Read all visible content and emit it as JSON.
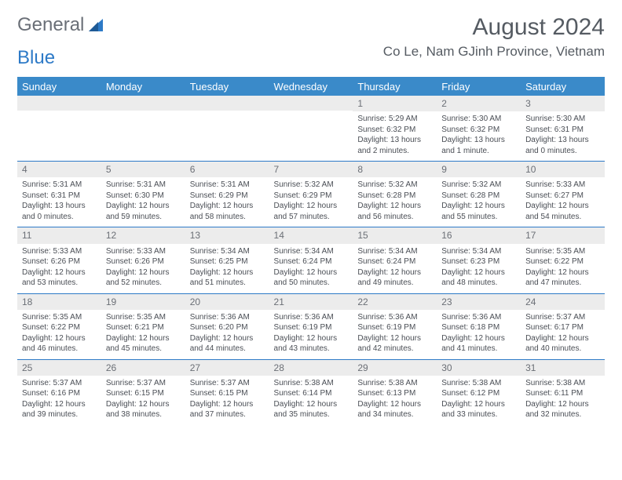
{
  "brand": {
    "part1": "General",
    "part2": "Blue"
  },
  "title": {
    "month": "August 2024",
    "location": "Co Le, Nam GJinh Province, Vietnam"
  },
  "colors": {
    "header_bg": "#3a8ac9",
    "header_text": "#ffffff",
    "row_divider": "#2d7ac7",
    "daynum_bg": "#ececec",
    "text": "#4a4e55",
    "brand_gray": "#6a6f77",
    "brand_blue": "#2d7ac7"
  },
  "dayHeaders": [
    "Sunday",
    "Monday",
    "Tuesday",
    "Wednesday",
    "Thursday",
    "Friday",
    "Saturday"
  ],
  "weeks": [
    [
      {
        "n": "",
        "sunrise": "",
        "sunset": "",
        "daylight": ""
      },
      {
        "n": "",
        "sunrise": "",
        "sunset": "",
        "daylight": ""
      },
      {
        "n": "",
        "sunrise": "",
        "sunset": "",
        "daylight": ""
      },
      {
        "n": "",
        "sunrise": "",
        "sunset": "",
        "daylight": ""
      },
      {
        "n": "1",
        "sunrise": "Sunrise: 5:29 AM",
        "sunset": "Sunset: 6:32 PM",
        "daylight": "Daylight: 13 hours and 2 minutes."
      },
      {
        "n": "2",
        "sunrise": "Sunrise: 5:30 AM",
        "sunset": "Sunset: 6:32 PM",
        "daylight": "Daylight: 13 hours and 1 minute."
      },
      {
        "n": "3",
        "sunrise": "Sunrise: 5:30 AM",
        "sunset": "Sunset: 6:31 PM",
        "daylight": "Daylight: 13 hours and 0 minutes."
      }
    ],
    [
      {
        "n": "4",
        "sunrise": "Sunrise: 5:31 AM",
        "sunset": "Sunset: 6:31 PM",
        "daylight": "Daylight: 13 hours and 0 minutes."
      },
      {
        "n": "5",
        "sunrise": "Sunrise: 5:31 AM",
        "sunset": "Sunset: 6:30 PM",
        "daylight": "Daylight: 12 hours and 59 minutes."
      },
      {
        "n": "6",
        "sunrise": "Sunrise: 5:31 AM",
        "sunset": "Sunset: 6:29 PM",
        "daylight": "Daylight: 12 hours and 58 minutes."
      },
      {
        "n": "7",
        "sunrise": "Sunrise: 5:32 AM",
        "sunset": "Sunset: 6:29 PM",
        "daylight": "Daylight: 12 hours and 57 minutes."
      },
      {
        "n": "8",
        "sunrise": "Sunrise: 5:32 AM",
        "sunset": "Sunset: 6:28 PM",
        "daylight": "Daylight: 12 hours and 56 minutes."
      },
      {
        "n": "9",
        "sunrise": "Sunrise: 5:32 AM",
        "sunset": "Sunset: 6:28 PM",
        "daylight": "Daylight: 12 hours and 55 minutes."
      },
      {
        "n": "10",
        "sunrise": "Sunrise: 5:33 AM",
        "sunset": "Sunset: 6:27 PM",
        "daylight": "Daylight: 12 hours and 54 minutes."
      }
    ],
    [
      {
        "n": "11",
        "sunrise": "Sunrise: 5:33 AM",
        "sunset": "Sunset: 6:26 PM",
        "daylight": "Daylight: 12 hours and 53 minutes."
      },
      {
        "n": "12",
        "sunrise": "Sunrise: 5:33 AM",
        "sunset": "Sunset: 6:26 PM",
        "daylight": "Daylight: 12 hours and 52 minutes."
      },
      {
        "n": "13",
        "sunrise": "Sunrise: 5:34 AM",
        "sunset": "Sunset: 6:25 PM",
        "daylight": "Daylight: 12 hours and 51 minutes."
      },
      {
        "n": "14",
        "sunrise": "Sunrise: 5:34 AM",
        "sunset": "Sunset: 6:24 PM",
        "daylight": "Daylight: 12 hours and 50 minutes."
      },
      {
        "n": "15",
        "sunrise": "Sunrise: 5:34 AM",
        "sunset": "Sunset: 6:24 PM",
        "daylight": "Daylight: 12 hours and 49 minutes."
      },
      {
        "n": "16",
        "sunrise": "Sunrise: 5:34 AM",
        "sunset": "Sunset: 6:23 PM",
        "daylight": "Daylight: 12 hours and 48 minutes."
      },
      {
        "n": "17",
        "sunrise": "Sunrise: 5:35 AM",
        "sunset": "Sunset: 6:22 PM",
        "daylight": "Daylight: 12 hours and 47 minutes."
      }
    ],
    [
      {
        "n": "18",
        "sunrise": "Sunrise: 5:35 AM",
        "sunset": "Sunset: 6:22 PM",
        "daylight": "Daylight: 12 hours and 46 minutes."
      },
      {
        "n": "19",
        "sunrise": "Sunrise: 5:35 AM",
        "sunset": "Sunset: 6:21 PM",
        "daylight": "Daylight: 12 hours and 45 minutes."
      },
      {
        "n": "20",
        "sunrise": "Sunrise: 5:36 AM",
        "sunset": "Sunset: 6:20 PM",
        "daylight": "Daylight: 12 hours and 44 minutes."
      },
      {
        "n": "21",
        "sunrise": "Sunrise: 5:36 AM",
        "sunset": "Sunset: 6:19 PM",
        "daylight": "Daylight: 12 hours and 43 minutes."
      },
      {
        "n": "22",
        "sunrise": "Sunrise: 5:36 AM",
        "sunset": "Sunset: 6:19 PM",
        "daylight": "Daylight: 12 hours and 42 minutes."
      },
      {
        "n": "23",
        "sunrise": "Sunrise: 5:36 AM",
        "sunset": "Sunset: 6:18 PM",
        "daylight": "Daylight: 12 hours and 41 minutes."
      },
      {
        "n": "24",
        "sunrise": "Sunrise: 5:37 AM",
        "sunset": "Sunset: 6:17 PM",
        "daylight": "Daylight: 12 hours and 40 minutes."
      }
    ],
    [
      {
        "n": "25",
        "sunrise": "Sunrise: 5:37 AM",
        "sunset": "Sunset: 6:16 PM",
        "daylight": "Daylight: 12 hours and 39 minutes."
      },
      {
        "n": "26",
        "sunrise": "Sunrise: 5:37 AM",
        "sunset": "Sunset: 6:15 PM",
        "daylight": "Daylight: 12 hours and 38 minutes."
      },
      {
        "n": "27",
        "sunrise": "Sunrise: 5:37 AM",
        "sunset": "Sunset: 6:15 PM",
        "daylight": "Daylight: 12 hours and 37 minutes."
      },
      {
        "n": "28",
        "sunrise": "Sunrise: 5:38 AM",
        "sunset": "Sunset: 6:14 PM",
        "daylight": "Daylight: 12 hours and 35 minutes."
      },
      {
        "n": "29",
        "sunrise": "Sunrise: 5:38 AM",
        "sunset": "Sunset: 6:13 PM",
        "daylight": "Daylight: 12 hours and 34 minutes."
      },
      {
        "n": "30",
        "sunrise": "Sunrise: 5:38 AM",
        "sunset": "Sunset: 6:12 PM",
        "daylight": "Daylight: 12 hours and 33 minutes."
      },
      {
        "n": "31",
        "sunrise": "Sunrise: 5:38 AM",
        "sunset": "Sunset: 6:11 PM",
        "daylight": "Daylight: 12 hours and 32 minutes."
      }
    ]
  ]
}
